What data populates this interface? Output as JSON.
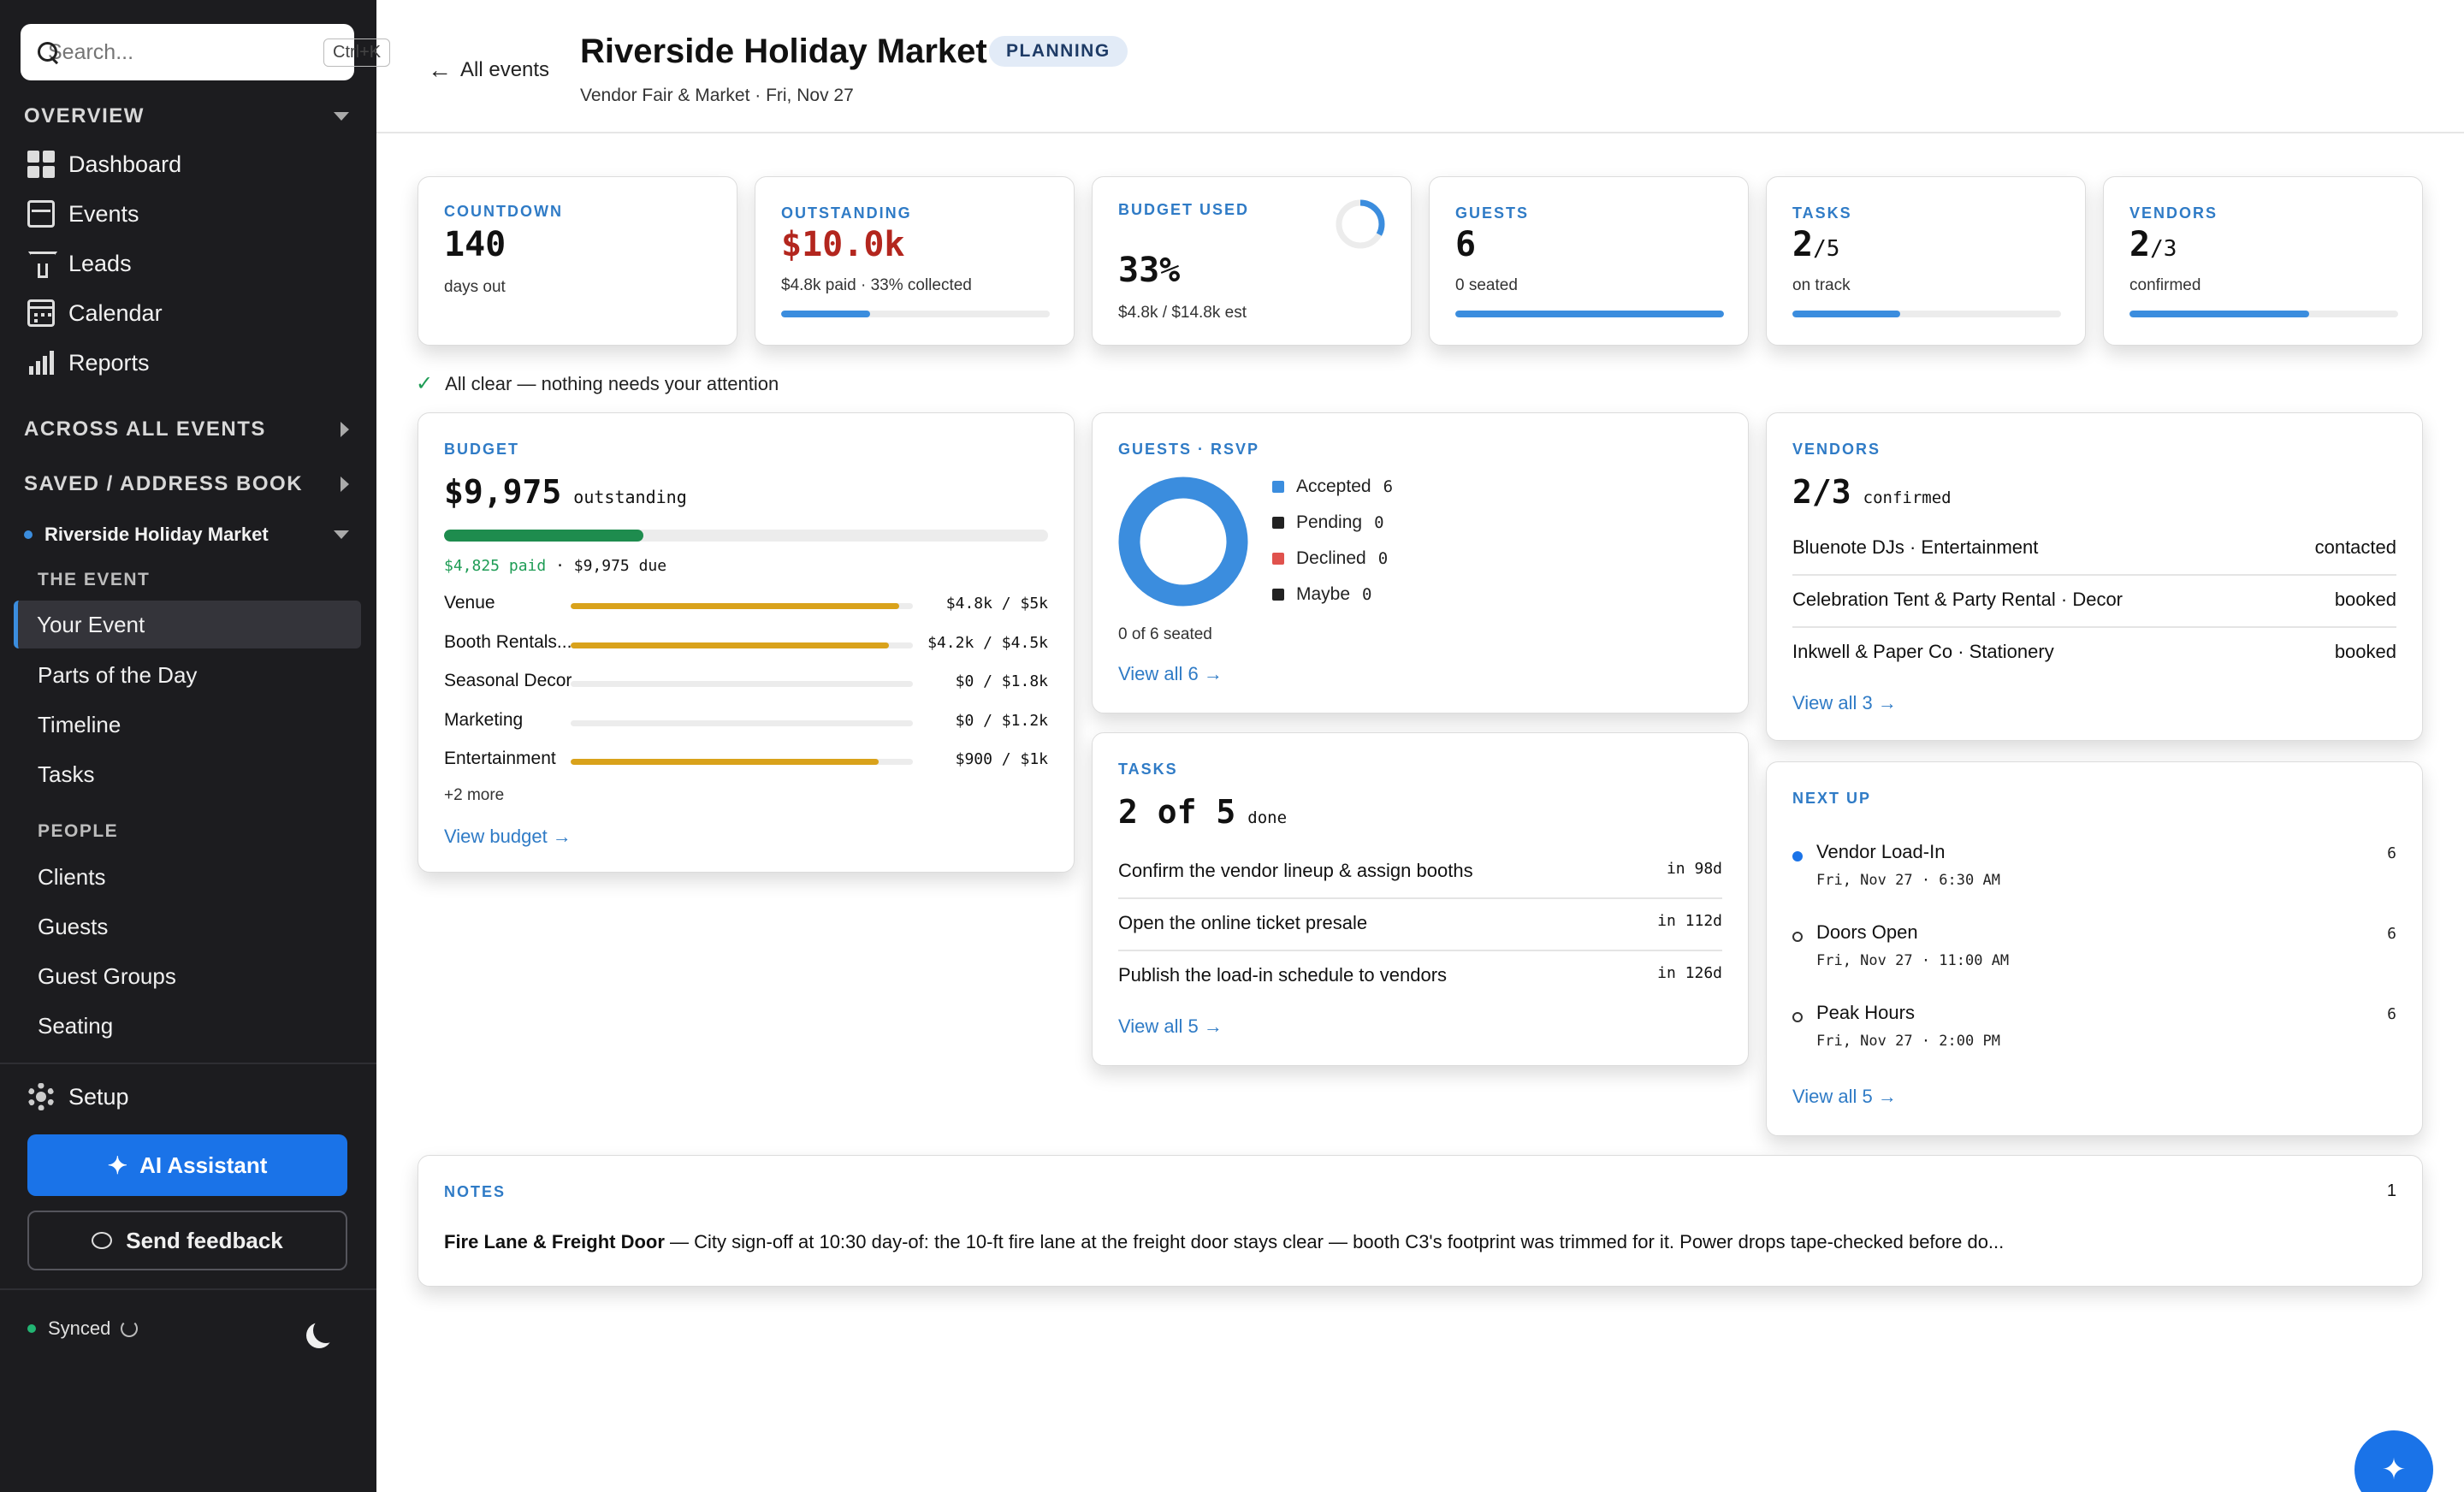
{
  "sidebar": {
    "search_placeholder": "Search...",
    "search_shortcut": "Ctrl+K",
    "overview_label": "OVERVIEW",
    "overview_items": [
      {
        "label": "Dashboard",
        "icon": "dashboard-icon"
      },
      {
        "label": "Events",
        "icon": "events-icon"
      },
      {
        "label": "Leads",
        "icon": "funnel-icon"
      },
      {
        "label": "Calendar",
        "icon": "calendar-icon"
      },
      {
        "label": "Reports",
        "icon": "reports-icon"
      }
    ],
    "across_label": "ACROSS ALL EVENTS",
    "saved_label": "SAVED / ADDRESS BOOK",
    "current_event": "Riverside Holiday Market",
    "the_event_label": "THE EVENT",
    "event_items": [
      "Your Event",
      "Parts of the Day",
      "Timeline",
      "Tasks"
    ],
    "people_label": "PEOPLE",
    "people_items": [
      "Clients",
      "Guests",
      "Guest Groups",
      "Seating"
    ],
    "setup_label": "Setup",
    "ai_label": "AI Assistant",
    "feedback_label": "Send feedback",
    "sync_label": "Synced"
  },
  "header": {
    "back_label": "All events",
    "title": "Riverside Holiday Market",
    "status": "PLANNING",
    "subtitle": "Vendor Fair & Market · Fri, Nov 27"
  },
  "stats": {
    "countdown": {
      "label": "COUNTDOWN",
      "value": "140",
      "sub": "days out"
    },
    "outstanding": {
      "label": "OUTSTANDING",
      "value": "$10.0k",
      "sub": "$4.8k paid · 33% collected",
      "progress": 0.33
    },
    "budget": {
      "label": "BUDGET USED",
      "value": "33%",
      "sub": "$4.8k / $14.8k est",
      "ring": 0.33
    },
    "guests": {
      "label": "GUESTS",
      "value": "6",
      "sub": "0 seated",
      "progress": 1.0
    },
    "tasks": {
      "label": "TASKS",
      "value": "2",
      "of": "/5",
      "sub": "on track",
      "progress": 0.4
    },
    "vendors": {
      "label": "VENDORS",
      "value": "2",
      "of": "/3",
      "sub": "confirmed",
      "progress": 0.67
    }
  },
  "all_clear": "All clear — nothing needs your attention",
  "budget_card": {
    "label": "BUDGET",
    "amount": "$9,975",
    "amount_suffix": "outstanding",
    "paid": "$4,825 paid",
    "due": "· $9,975 due",
    "paid_fraction": 0.33,
    "lines": [
      {
        "name": "Venue",
        "value": "$4.8k / $5k",
        "fraction": 0.96
      },
      {
        "name": "Booth Rentals...",
        "value": "$4.2k / $4.5k",
        "fraction": 0.93
      },
      {
        "name": "Seasonal Decor",
        "value": "$0 / $1.8k",
        "fraction": 0
      },
      {
        "name": "Marketing",
        "value": "$0 / $1.2k",
        "fraction": 0
      },
      {
        "name": "Entertainment",
        "value": "$900 / $1k",
        "fraction": 0.9
      }
    ],
    "more": "+2 more",
    "link": "View budget →"
  },
  "guests_card": {
    "label": "GUESTS · RSVP",
    "legend": [
      {
        "name": "Accepted",
        "count": "6",
        "color": "#3b8dde"
      },
      {
        "name": "Pending",
        "count": "0",
        "color": "#222222"
      },
      {
        "name": "Declined",
        "count": "0",
        "color": "#e0524d"
      },
      {
        "name": "Maybe",
        "count": "0",
        "color": "#222222"
      }
    ],
    "seated": "0 of 6 seated",
    "link": "View all 6 →"
  },
  "vendors_card": {
    "label": "VENDORS",
    "count": "2/3",
    "suffix": "confirmed",
    "rows": [
      {
        "name": "Bluenote DJs · Entertainment",
        "status": "contacted"
      },
      {
        "name": "Celebration Tent & Party Rental · Decor",
        "status": "booked"
      },
      {
        "name": "Inkwell & Paper Co · Stationery",
        "status": "booked"
      }
    ],
    "link": "View all 3 →"
  },
  "tasks_card": {
    "label": "TASKS",
    "count": "2 of 5",
    "suffix": "done",
    "rows": [
      {
        "name": "Confirm the vendor lineup & assign booths",
        "due": "in 98d"
      },
      {
        "name": "Open the online ticket presale",
        "due": "in 112d"
      },
      {
        "name": "Publish the load-in schedule to vendors",
        "due": "in 126d"
      }
    ],
    "link": "View all 5 →"
  },
  "nextup_card": {
    "label": "NEXT UP",
    "items": [
      {
        "name": "Vendor Load-In",
        "time": "Fri, Nov 27 · 6:30 AM",
        "count": "6"
      },
      {
        "name": "Doors Open",
        "time": "Fri, Nov 27 · 11:00 AM",
        "count": "6"
      },
      {
        "name": "Peak Hours",
        "time": "Fri, Nov 27 · 2:00 PM",
        "count": "6"
      }
    ],
    "link": "View all 5 →"
  },
  "notes_card": {
    "label": "NOTES",
    "count": "1",
    "note_title": "Fire Lane & Freight Door",
    "note_body": " — City sign-off at 10:30 day-of: the 10-ft fire lane at the freight door stays clear — booth C3's footprint was trimmed for it. Power drops tape-checked before do..."
  },
  "colors": {
    "accent": "#1a73e8",
    "danger": "#b3261e",
    "paid": "#1e9c55",
    "budget_bar": "#d9a21b"
  }
}
